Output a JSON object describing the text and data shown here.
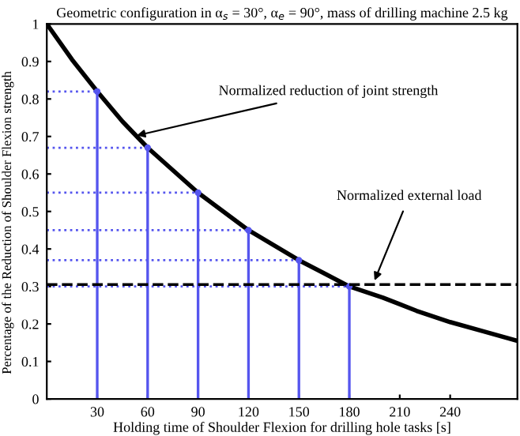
{
  "chart_data": {
    "type": "line",
    "title": "Geometric configuration in α$_{s}$ = 30°, α$_{e}$ = 90°, mass of drilling machine 2.5 kg",
    "xlabel": "Holding time of Shoulder Flexion for drilling hole tasks [s]",
    "ylabel": "Percentage of the Reduction of Shoulder Flexion strength",
    "series": [
      {
        "color": "#000000",
        "x": [
          0,
          15,
          30,
          45,
          60,
          75,
          90,
          105,
          120,
          135,
          150,
          165,
          180,
          200,
          220,
          240,
          260,
          280
        ],
        "values": [
          1.0,
          0.905,
          0.82,
          0.74,
          0.67,
          0.61,
          0.55,
          0.5,
          0.45,
          0.41,
          0.37,
          0.335,
          0.3,
          0.27,
          0.235,
          0.205,
          0.18,
          0.155
        ]
      },
      {
        "type": "lollipop",
        "marker": "circle",
        "color": "#5555ee",
        "x": [
          30,
          60,
          90,
          120,
          150,
          180
        ],
        "values": [
          0.82,
          0.67,
          0.55,
          0.45,
          0.37,
          0.3
        ],
        "xerrors": [
          [
            0,
            30
          ],
          [
            0,
            60
          ],
          [
            0,
            90
          ],
          [
            0,
            120
          ],
          [
            0,
            150
          ],
          [
            0,
            180
          ]
        ]
      }
    ],
    "ref_lines": [
      {
        "axis": "y",
        "value": 0.305,
        "color": "#000000",
        "line_style": "dashed"
      }
    ],
    "annotations": [
      {
        "text": "Normalized reduction of joint strength",
        "x": 51,
        "y": 0.7
      },
      {
        "text": "Normalized external load",
        "x": 194,
        "y": 0.305
      }
    ],
    "xlim": [
      0,
      280
    ],
    "ylim": [
      0,
      1
    ],
    "xticks": [
      30,
      60,
      90,
      120,
      150,
      180,
      210,
      240
    ],
    "yticks": [
      0,
      0.1,
      0.2,
      0.3,
      0.4,
      0.5,
      0.6,
      0.7,
      0.8,
      0.9,
      1
    ],
    "grid": false,
    "legend": false
  }
}
